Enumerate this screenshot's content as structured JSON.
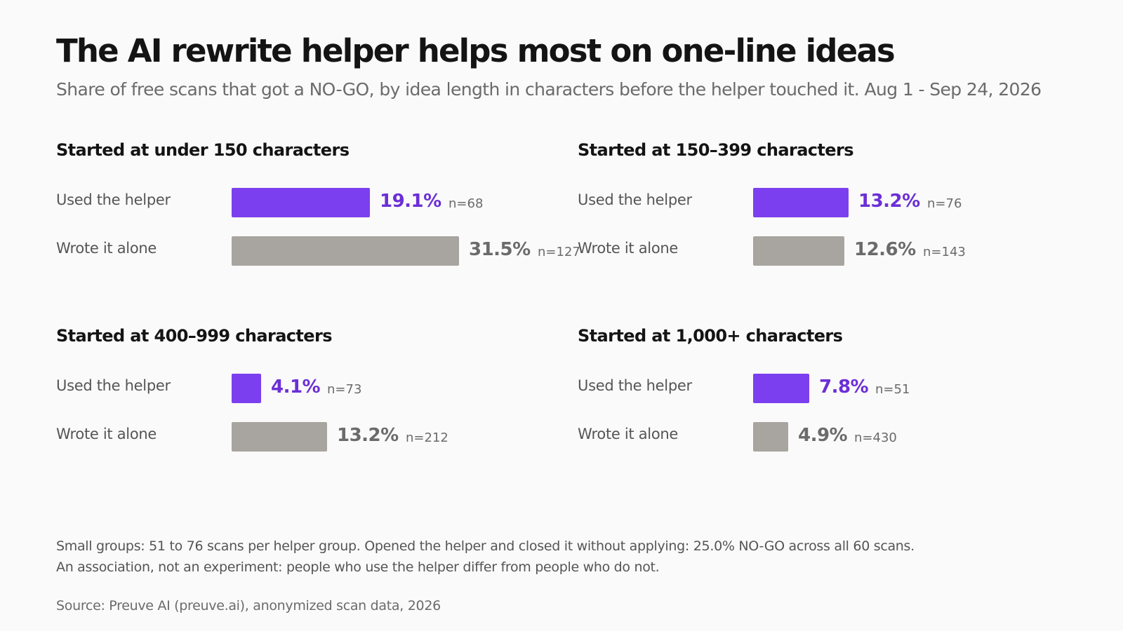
{
  "chart_data": {
    "type": "bar",
    "orientation": "horizontal",
    "title": "The AI rewrite helper helps most on one-line ideas",
    "subtitle": "Share of free scans that got a NO-GO, by idea length in characters before the helper touched it. Aug 1 - Sep 24, 2026",
    "unit": "%",
    "colors": {
      "helper": "#7b3fef",
      "alone": "#a8a49f",
      "helper_text": "#6b2fd6",
      "alone_text": "#6b6b6b"
    },
    "panels": [
      {
        "title": "Started at under 150 characters",
        "rows": [
          {
            "group": "helper",
            "label": "Used the helper",
            "value": 19.1,
            "value_label": "19.1%",
            "n_label": "n=68"
          },
          {
            "group": "alone",
            "label": "Wrote it alone",
            "value": 31.5,
            "value_label": "31.5%",
            "n_label": "n=127"
          }
        ]
      },
      {
        "title": "Started at 150–399 characters",
        "rows": [
          {
            "group": "helper",
            "label": "Used the helper",
            "value": 13.2,
            "value_label": "13.2%",
            "n_label": "n=76"
          },
          {
            "group": "alone",
            "label": "Wrote it alone",
            "value": 12.6,
            "value_label": "12.6%",
            "n_label": "n=143"
          }
        ]
      },
      {
        "title": "Started at 400–999 characters",
        "rows": [
          {
            "group": "helper",
            "label": "Used the helper",
            "value": 4.1,
            "value_label": "4.1%",
            "n_label": "n=73"
          },
          {
            "group": "alone",
            "label": "Wrote it alone",
            "value": 13.2,
            "value_label": "13.2%",
            "n_label": "n=212"
          }
        ]
      },
      {
        "title": "Started at 1,000+ characters",
        "rows": [
          {
            "group": "helper",
            "label": "Used the helper",
            "value": 7.8,
            "value_label": "7.8%",
            "n_label": "n=51"
          },
          {
            "group": "alone",
            "label": "Wrote it alone",
            "value": 4.9,
            "value_label": "4.9%",
            "n_label": "n=430"
          }
        ]
      }
    ]
  },
  "notes": {
    "line1": "Small groups: 51 to 76 scans per helper group. Opened the helper and closed it without applying: 25.0% NO-GO across all 60 scans.",
    "line2": "An association, not an experiment: people who use the helper differ from people who do not.",
    "source": "Source: Preuve AI (preuve.ai), anonymized scan data, 2026"
  }
}
